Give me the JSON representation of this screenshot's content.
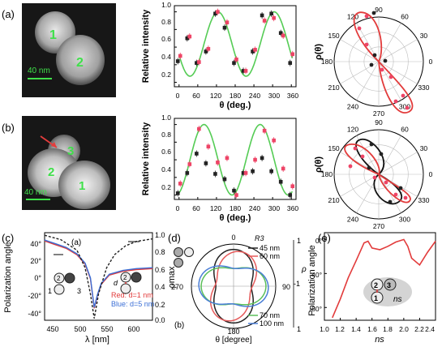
{
  "panels": {
    "a": {
      "label": "(a)",
      "sem": {
        "labels": [
          "1",
          "2"
        ],
        "scalebar": "40 nm"
      },
      "intensity": {
        "ylabel": "Relative intensity",
        "xlabel": "θ (deg.)",
        "xticks": [
          "0",
          "60",
          "120",
          "180",
          "240",
          "300",
          "360"
        ],
        "yticks": [
          "0.2",
          "0.4",
          "0.6",
          "0.8",
          "1.0"
        ]
      },
      "polar": {
        "ylabel": "ρ(θ)",
        "angles": [
          "90",
          "120",
          "150",
          "180",
          "210",
          "240",
          "270",
          "300",
          "330",
          "0",
          "30",
          "60"
        ]
      }
    },
    "b": {
      "label": "(b)",
      "sem": {
        "labels": [
          "1",
          "2",
          "3"
        ],
        "scalebar": "40 nm"
      },
      "intensity": {
        "ylabel": "Relative intensity",
        "xlabel": "θ (deg.)",
        "xticks": [
          "0",
          "60",
          "120",
          "180",
          "240",
          "300",
          "360"
        ],
        "yticks": [
          "0.2",
          "0.4",
          "0.6",
          "0.8",
          "1.0"
        ]
      },
      "polar": {
        "ylabel": "ρ(θ)",
        "angles": [
          "90",
          "120",
          "150",
          "180",
          "210",
          "240",
          "270",
          "300",
          "330",
          "0",
          "30",
          "60"
        ]
      }
    },
    "c": {
      "label": "(c)",
      "sublabel": "(a)",
      "ylabel": "Polarization angle",
      "y2label": "ρmax",
      "xlabel": "λ [nm]",
      "xticks": [
        "450",
        "500",
        "550",
        "600"
      ],
      "yticks": [
        "40°",
        "20°",
        "0°",
        "-20°",
        "-40°"
      ],
      "y2ticks": [
        "1.0",
        "0.8",
        "0.6",
        "0.4",
        "0.2",
        "0.0"
      ],
      "legend_red": "Red: d=1 nm",
      "legend_blue": "Blue: d=5 nm",
      "inset_labels": [
        "2",
        "3",
        "1",
        "d"
      ]
    },
    "d": {
      "label": "(d)",
      "sublabel": "(b)",
      "legend_title": "R3",
      "legend_items": [
        "45 nm",
        "60 nm",
        "70 nm",
        "100 nm"
      ],
      "angles": [
        "0",
        "90",
        "180",
        "270"
      ],
      "rho_ticks": [
        "1",
        "-1",
        "1"
      ],
      "rho_label": "ρ",
      "xlabel": "θ [degree]"
    },
    "e": {
      "label": "(e)",
      "ylabel": "Polarization angle",
      "xlabel": "ns",
      "xticks": [
        "1.0",
        "1.2",
        "1.4",
        "1.6",
        "1.8",
        "2.0",
        "2.2",
        "2.4"
      ],
      "yticks": [
        "0°",
        "-40°",
        "-80°"
      ],
      "inset_labels": [
        "2",
        "3",
        "1",
        "ns"
      ]
    }
  },
  "chart_data": [
    {
      "type": "scatter",
      "panel": "a-intensity",
      "xlabel": "θ (deg.)",
      "ylabel": "Relative intensity",
      "xlim": [
        -15,
        375
      ],
      "ylim": [
        0.15,
        1.07
      ],
      "series": [
        {
          "name": "",
          "kind": "line",
          "color": "#55cc55",
          "function": "cos2",
          "min": 0.27,
          "max": 1.0,
          "peak_deg": 125,
          "period_deg": 180
        },
        {
          "name": "",
          "kind": "points",
          "color": "#222222",
          "x": [
            0,
            30,
            60,
            90,
            120,
            150,
            180,
            210,
            240,
            270,
            300,
            330,
            360
          ],
          "y": [
            0.44,
            0.7,
            0.42,
            0.55,
            0.98,
            0.82,
            0.42,
            0.33,
            0.55,
            0.96,
            0.98,
            0.76,
            0.42
          ]
        },
        {
          "name": "",
          "kind": "points",
          "color": "#ee4466",
          "x": [
            0,
            30,
            60,
            90,
            120,
            150,
            180,
            210,
            240,
            270,
            300,
            330,
            360
          ],
          "y": [
            0.5,
            0.72,
            0.43,
            0.58,
            1.0,
            0.88,
            0.46,
            0.33,
            0.57,
            0.9,
            0.93,
            0.73,
            0.52
          ]
        }
      ]
    },
    {
      "type": "scatter",
      "panel": "b-intensity",
      "xlabel": "θ (deg.)",
      "ylabel": "Relative intensity",
      "xlim": [
        -15,
        375
      ],
      "ylim": [
        0.15,
        1.07
      ],
      "series": [
        {
          "name": "",
          "kind": "line",
          "color": "#55cc55",
          "function": "cos2",
          "min": 0.2,
          "max": 1.0,
          "peak_deg": 80,
          "period_deg": 180
        },
        {
          "name": "",
          "kind": "points",
          "color": "#222222",
          "x": [
            0,
            30,
            60,
            90,
            120,
            150,
            180,
            210,
            240,
            270,
            300,
            330,
            360
          ],
          "y": [
            0.22,
            0.45,
            0.67,
            0.56,
            0.44,
            0.38,
            0.25,
            0.45,
            0.47,
            0.62,
            0.47,
            0.35,
            0.2
          ]
        },
        {
          "name": "",
          "kind": "points",
          "color": "#ee4466",
          "x": [
            0,
            30,
            60,
            90,
            120,
            150,
            180,
            210,
            240,
            270,
            300,
            330,
            360
          ],
          "y": [
            0.33,
            0.55,
            0.95,
            0.75,
            0.57,
            0.62,
            0.2,
            0.45,
            0.6,
            0.93,
            0.82,
            0.5,
            0.3
          ]
        }
      ]
    },
    {
      "type": "line",
      "panel": "c",
      "xlabel": "λ [nm]",
      "ylabel": "Polarization angle",
      "xlim": [
        430,
        630
      ],
      "ylim": [
        -45,
        50
      ],
      "y2lim": [
        0,
        1
      ],
      "series": [
        {
          "name": "Red: d=1 nm",
          "color": "#e23b3b",
          "axis": "left",
          "x": [
            430,
            450,
            470,
            490,
            505,
            515,
            522,
            528,
            535,
            550,
            575,
            600,
            630
          ],
          "y": [
            41,
            37,
            33,
            26,
            16,
            0,
            -32,
            -18,
            -6,
            4,
            8,
            10,
            11
          ]
        },
        {
          "name": "Blue: d=5 nm",
          "color": "#3b6fd6",
          "axis": "left",
          "x": [
            430,
            450,
            470,
            490,
            505,
            515,
            522,
            528,
            535,
            550,
            575,
            600,
            630
          ],
          "y": [
            42,
            38,
            34,
            27,
            17,
            1,
            -31,
            -17,
            -5,
            5,
            9,
            11,
            12
          ]
        },
        {
          "name": "",
          "color": "#222222",
          "axis": "right",
          "dashed": true,
          "x": [
            430,
            460,
            490,
            505,
            515,
            522,
            530,
            545,
            560,
            580,
            600,
            630
          ],
          "y": [
            0.97,
            0.92,
            0.8,
            0.6,
            0.3,
            0.02,
            0.3,
            0.6,
            0.75,
            0.85,
            0.9,
            0.93
          ]
        }
      ]
    },
    {
      "type": "line",
      "panel": "d",
      "xlabel": "θ [degree]",
      "series": [
        {
          "name": "45 nm",
          "color": "#222222",
          "angle_deg": 0,
          "lobe": 0.78
        },
        {
          "name": "60 nm",
          "color": "#e55b5b",
          "angle_deg": 15,
          "lobe": 0.72
        },
        {
          "name": "70 nm",
          "color": "#5bbf5b",
          "angle_deg": 90,
          "lobe": 0.6
        },
        {
          "name": "100 nm",
          "color": "#4a7ed6",
          "angle_deg": 95,
          "lobe": 0.7
        }
      ]
    },
    {
      "type": "line",
      "panel": "e",
      "xlabel": "ns",
      "ylabel": "Polarization angle",
      "xlim": [
        1.0,
        2.4
      ],
      "ylim": [
        -95,
        8
      ],
      "series": [
        {
          "name": "",
          "color": "#e23b3b",
          "x": [
            1.1,
            1.2,
            1.3,
            1.4,
            1.5,
            1.55,
            1.6,
            1.7,
            1.8,
            1.9,
            2.0,
            2.05,
            2.1,
            2.2,
            2.3,
            2.4
          ],
          "y": [
            -92,
            -70,
            -45,
            -25,
            -4,
            -2,
            -10,
            -12,
            -8,
            -3,
            0,
            -8,
            -22,
            -30,
            -15,
            -2
          ]
        }
      ]
    }
  ]
}
